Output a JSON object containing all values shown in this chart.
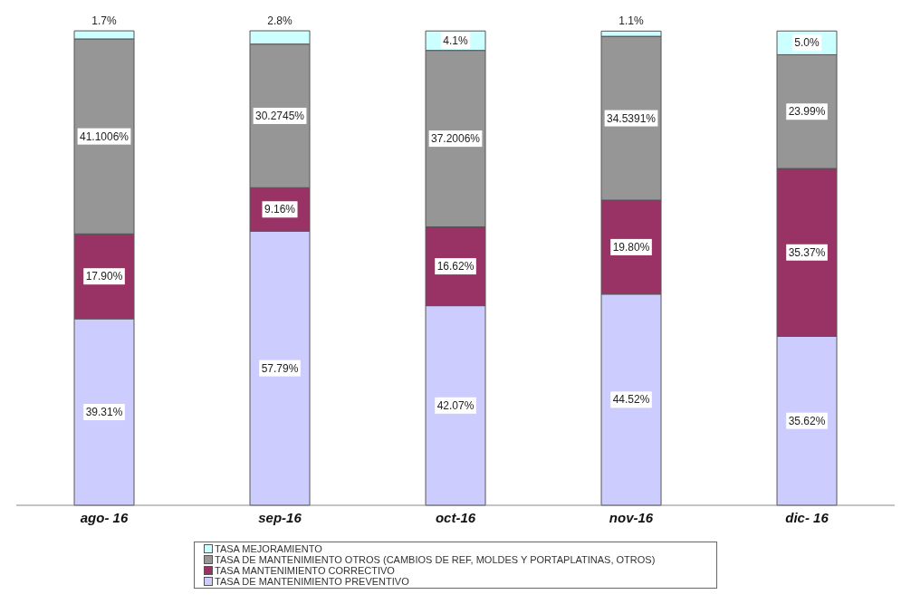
{
  "chart_data": {
    "type": "bar",
    "stacked": true,
    "categories": [
      "ago- 16",
      "sep-16",
      "oct-16",
      "nov-16",
      "dic- 16"
    ],
    "series": [
      {
        "name": "TASA DE MANTENIMIENTO PREVENTIVO",
        "color": "#ccccff",
        "values": [
          39.31,
          57.79,
          42.07,
          44.52,
          35.62
        ],
        "value_labels": [
          "39.31%",
          "57.79%",
          "42.07%",
          "44.52%",
          "35.62%"
        ]
      },
      {
        "name": "TASA MANTENIMIENTO CORRECTIVO",
        "color": "#993366",
        "values": [
          17.9,
          9.16,
          16.62,
          19.8,
          35.37
        ],
        "value_labels": [
          "17.90%",
          "9.16%",
          "16.62%",
          "19.80%",
          "35.37%"
        ]
      },
      {
        "name": "TASA DE MANTENIMIENTO OTROS (CAMBIOS DE REF, MOLDES Y PORTAPLATINAS, OTROS)",
        "color": "#969696",
        "values": [
          41.1006,
          30.2745,
          37.2006,
          34.5391,
          23.99
        ],
        "value_labels": [
          "41.1006%",
          "30.2745%",
          "37.2006%",
          "34.5391%",
          "23.99%"
        ]
      },
      {
        "name": "TASA MEJORAMIENTO",
        "color": "#ccffff",
        "values": [
          1.7,
          2.8,
          4.1,
          1.1,
          5.0
        ],
        "value_labels": [
          "1.7%",
          "2.8%",
          "4.1%",
          "1.1%",
          "5.0%"
        ]
      }
    ],
    "legend": "bottom"
  }
}
